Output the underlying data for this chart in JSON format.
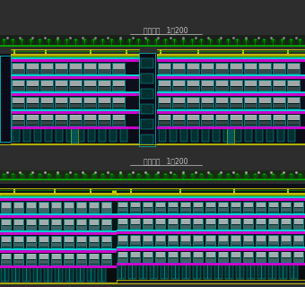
{
  "bg_color": "#2d2d2d",
  "title1": "北立面图   1：200",
  "title2": "南立面图   1：200",
  "title_color": "#c8c8c8",
  "title_fontsize": 5.5,
  "cyan": "#00cccc",
  "magenta": "#cc00cc",
  "yellow": "#cccc00",
  "white": "#d8d8d8",
  "green": "#00aa00",
  "gray": "#666666",
  "dark_bg": "#1a1a22",
  "teal_win": "#003030",
  "dark_floor": "#101018"
}
